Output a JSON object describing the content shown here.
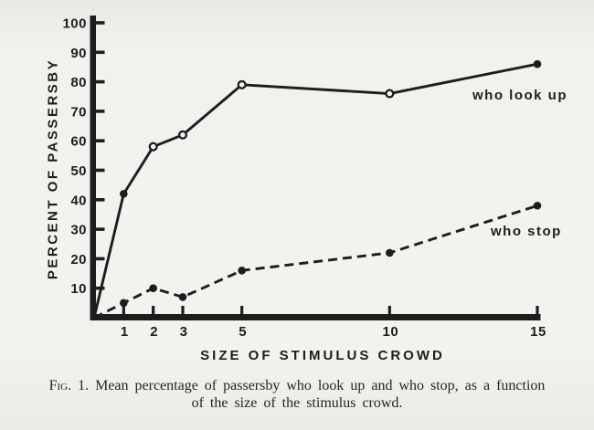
{
  "figure": {
    "caption_fig_label": "Fig. 1.",
    "caption_line1": "Mean percentage of passersby who look up and who stop, as a function",
    "caption_line2": "of the size of the stimulus crowd."
  },
  "chart_data": {
    "type": "line",
    "title": "",
    "xlabel": "SIZE OF STIMULUS CROWD",
    "ylabel": "PERCENT OF PASSERSBY",
    "x": [
      1,
      2,
      3,
      5,
      10,
      15
    ],
    "xticks": [
      1,
      2,
      3,
      5,
      10,
      15
    ],
    "yticks": [
      10,
      20,
      30,
      40,
      50,
      60,
      70,
      80,
      90,
      100
    ],
    "xlim": [
      0,
      15
    ],
    "ylim": [
      0,
      100
    ],
    "grid": false,
    "legend_position": "inline-labels",
    "series": [
      {
        "name": "who look up",
        "line_style": "solid",
        "values": [
          42,
          58,
          62,
          79,
          76,
          86
        ],
        "markers": [
          "filled",
          "open",
          "open",
          "open",
          "open",
          "filled"
        ],
        "starts_at_origin": true
      },
      {
        "name": "who stop",
        "line_style": "dashed",
        "values": [
          5,
          10,
          7,
          16,
          22,
          38
        ],
        "markers": [
          "filled",
          "filled",
          "filled",
          "filled",
          "filled",
          "filled"
        ],
        "starts_at_origin": true
      }
    ],
    "ink_color": "#1e1d1b",
    "paper_color": "#f3f2ee"
  }
}
